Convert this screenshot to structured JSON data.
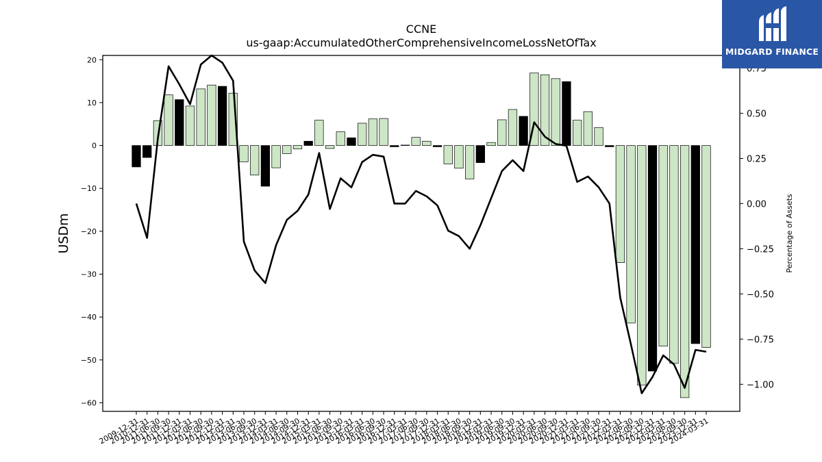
{
  "chart_data": {
    "type": "bar",
    "title": "CCNE",
    "subtitle": "us-gaap:AccumulatedOtherComprehensiveIncomeLossNetOfTax",
    "ylabel": "USDm",
    "y2label": "Percentage of Assets",
    "ylim": [
      -62,
      21
    ],
    "y2lim": [
      -1.15,
      0.82
    ],
    "yticks": [
      20,
      10,
      0,
      -10,
      -20,
      -30,
      -40,
      -50,
      -60
    ],
    "y2ticks": [
      0.75,
      0.5,
      0.25,
      0.0,
      -0.25,
      -0.5,
      -0.75,
      -1.0
    ],
    "categories": [
      "2009-12-31",
      "2010-12-31",
      "2011-06-30",
      "2011-09-30",
      "2011-12-31",
      "2012-03-31",
      "2012-06-30",
      "2012-09-30",
      "2012-12-31",
      "2013-03-31",
      "2013-06-30",
      "2013-09-30",
      "2013-12-31",
      "2014-03-31",
      "2014-06-30",
      "2014-09-30",
      "2014-12-31",
      "2015-03-31",
      "2015-06-30",
      "2015-09-30",
      "2015-12-31",
      "2016-03-31",
      "2016-06-30",
      "2016-09-30",
      "2016-12-31",
      "2017-03-31",
      "2017-06-30",
      "2017-09-30",
      "2017-12-31",
      "2018-03-31",
      "2018-06-30",
      "2018-09-30",
      "2018-12-31",
      "2019-03-31",
      "2019-06-30",
      "2019-09-30",
      "2019-12-31",
      "2020-03-31",
      "2020-06-30",
      "2020-09-30",
      "2020-12-31",
      "2021-03-31",
      "2021-06-30",
      "2021-09-30",
      "2021-12-31",
      "2022-03-31",
      "2022-06-30",
      "2022-09-30",
      "2022-12-31",
      "2023-03-31",
      "2023-06-30",
      "2023-09-30",
      "2023-12-31",
      "2024-03-31"
    ],
    "series": [
      {
        "kind": "bar",
        "values": [
          -5.0,
          -2.8,
          5.8,
          11.8,
          10.7,
          9.2,
          13.2,
          14.1,
          13.8,
          12.2,
          -3.8,
          -6.9,
          -9.5,
          -5.2,
          -1.9,
          -0.8,
          1.0,
          5.9,
          -0.7,
          3.2,
          1.8,
          5.2,
          6.2,
          6.3,
          -0.3,
          0.1,
          1.9,
          1.0,
          -0.3,
          -4.3,
          -5.3,
          -7.8,
          -4.0,
          0.7,
          6.0,
          8.4,
          6.8,
          16.9,
          16.5,
          15.6,
          14.9,
          5.9,
          7.9,
          4.2,
          -0.3,
          -27.3,
          -41.4,
          -55.9,
          -52.6,
          -46.8,
          -50.8,
          -58.8,
          -46.2,
          -47.1
        ]
      },
      {
        "kind": "line",
        "axis": "right",
        "values": [
          0.0,
          -0.19,
          0.36,
          0.76,
          0.66,
          0.55,
          0.77,
          0.82,
          0.78,
          0.68,
          -0.21,
          -0.37,
          -0.44,
          -0.23,
          -0.09,
          -0.04,
          0.05,
          0.28,
          -0.03,
          0.14,
          0.09,
          0.23,
          0.27,
          0.26,
          0.0,
          0.0,
          0.07,
          0.04,
          -0.01,
          -0.15,
          -0.18,
          -0.25,
          -0.12,
          0.03,
          0.18,
          0.24,
          0.18,
          0.45,
          0.37,
          0.33,
          0.32,
          0.12,
          0.15,
          0.09,
          0.0,
          -0.52,
          -0.78,
          -1.05,
          -0.96,
          -0.84,
          -0.89,
          -1.02,
          -0.81,
          -0.82
        ]
      }
    ],
    "bar_colors": {
      "default": "#cce6c6",
      "highlight": "#000000",
      "edge": "#000000"
    },
    "highlight_indices": [
      0,
      1,
      4,
      8,
      12,
      16,
      20,
      24,
      28,
      32,
      36,
      40,
      44,
      48,
      52
    ],
    "line_color": "#000000"
  },
  "logo": {
    "brand": "MIDGARD FINANCE",
    "background": "#2a56a6"
  }
}
